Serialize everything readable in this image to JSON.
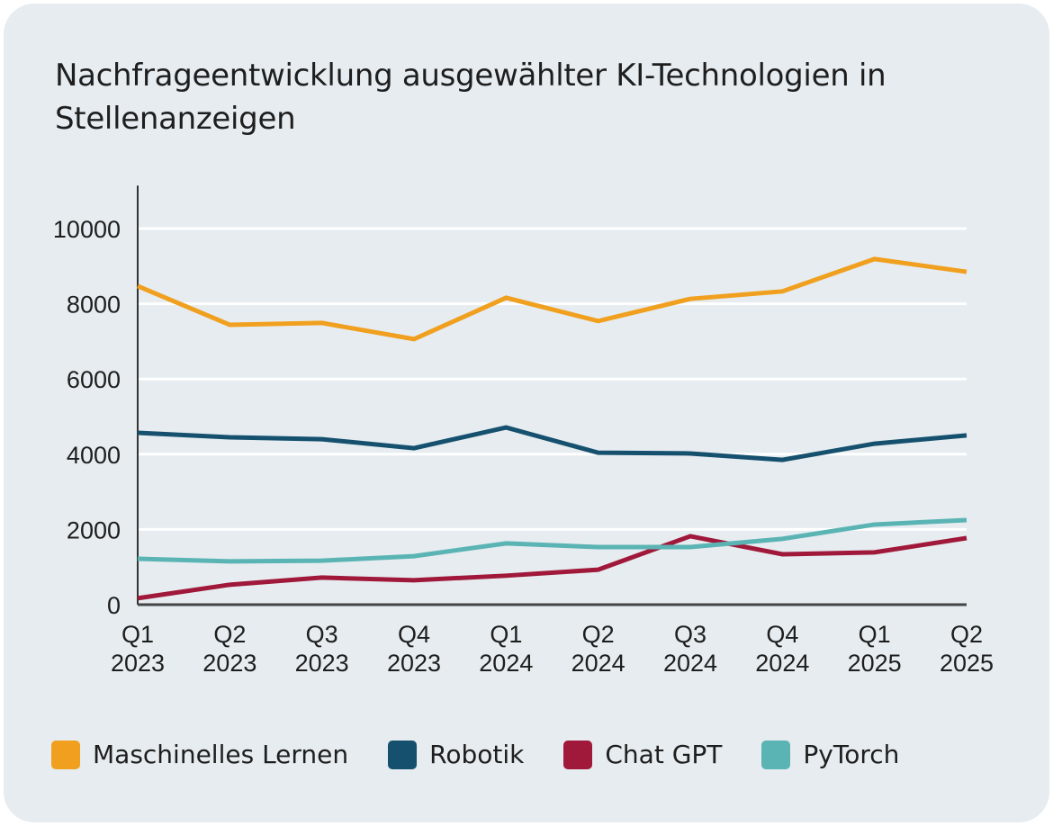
{
  "chart_data": {
    "type": "line",
    "title": "Nachfrageentwicklung ausgewählter KI-Technologien in Stellenanzeigen",
    "xlabel": "",
    "ylabel": "",
    "categories": [
      [
        "Q1",
        "2023"
      ],
      [
        "Q2",
        "2023"
      ],
      [
        "Q3",
        "2023"
      ],
      [
        "Q4",
        "2023"
      ],
      [
        "Q1",
        "2024"
      ],
      [
        "Q2",
        "2024"
      ],
      [
        "Q3",
        "2024"
      ],
      [
        "Q4",
        "2024"
      ],
      [
        "Q1",
        "2025"
      ],
      [
        "Q2",
        "2025"
      ]
    ],
    "yticks": [
      0,
      2000,
      4000,
      6000,
      8000,
      10000
    ],
    "ylim": [
      0,
      11000
    ],
    "grid": true,
    "legend_position": "bottom",
    "series": [
      {
        "name": "Maschinelles Lernen",
        "color": "#f0a01e",
        "values": [
          8470,
          7440,
          7490,
          7060,
          8160,
          7540,
          8130,
          8330,
          9190,
          8850
        ]
      },
      {
        "name": "Robotik",
        "color": "#15506e",
        "values": [
          4570,
          4450,
          4400,
          4160,
          4710,
          4040,
          4020,
          3850,
          4280,
          4500
        ]
      },
      {
        "name": "Chat GPT",
        "color": "#a0183a",
        "values": [
          170,
          530,
          720,
          650,
          770,
          930,
          1820,
          1340,
          1390,
          1770
        ]
      },
      {
        "name": "PyTorch",
        "color": "#5ab4b4",
        "values": [
          1220,
          1150,
          1170,
          1290,
          1630,
          1530,
          1530,
          1750,
          2130,
          2250
        ]
      }
    ]
  }
}
